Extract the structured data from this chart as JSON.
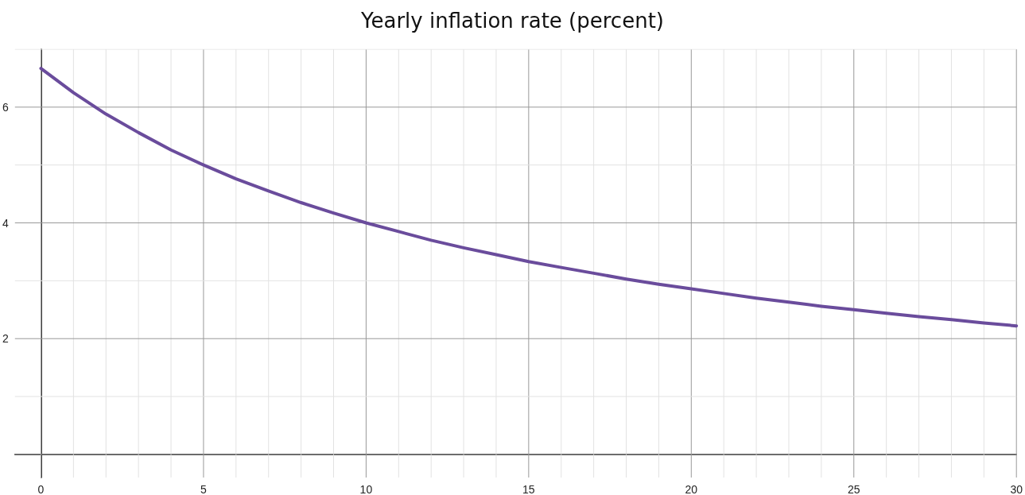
{
  "chart_data": {
    "type": "line",
    "title": "Yearly inflation rate (percent)",
    "x": [
      0,
      1,
      2,
      3,
      4,
      5,
      6,
      7,
      8,
      9,
      10,
      11,
      12,
      13,
      14,
      15,
      16,
      17,
      18,
      19,
      20,
      21,
      22,
      23,
      24,
      25,
      26,
      27,
      28,
      29,
      30
    ],
    "series": [
      {
        "color": "#6a4c9c",
        "values": [
          6.67,
          6.25,
          5.88,
          5.56,
          5.26,
          5.0,
          4.76,
          4.55,
          4.35,
          4.17,
          4.0,
          3.85,
          3.7,
          3.57,
          3.45,
          3.33,
          3.23,
          3.13,
          3.03,
          2.94,
          2.86,
          2.78,
          2.7,
          2.63,
          2.56,
          2.5,
          2.44,
          2.38,
          2.33,
          2.27,
          2.22
        ]
      }
    ],
    "xlim": [
      -0.8,
      30
    ],
    "ylim": [
      -0.4,
      7
    ],
    "xticks": [
      0,
      5,
      10,
      15,
      20,
      25,
      30
    ],
    "yticks": [
      2,
      4,
      6
    ],
    "grid": true,
    "marker": "none",
    "line_style": "solid"
  }
}
